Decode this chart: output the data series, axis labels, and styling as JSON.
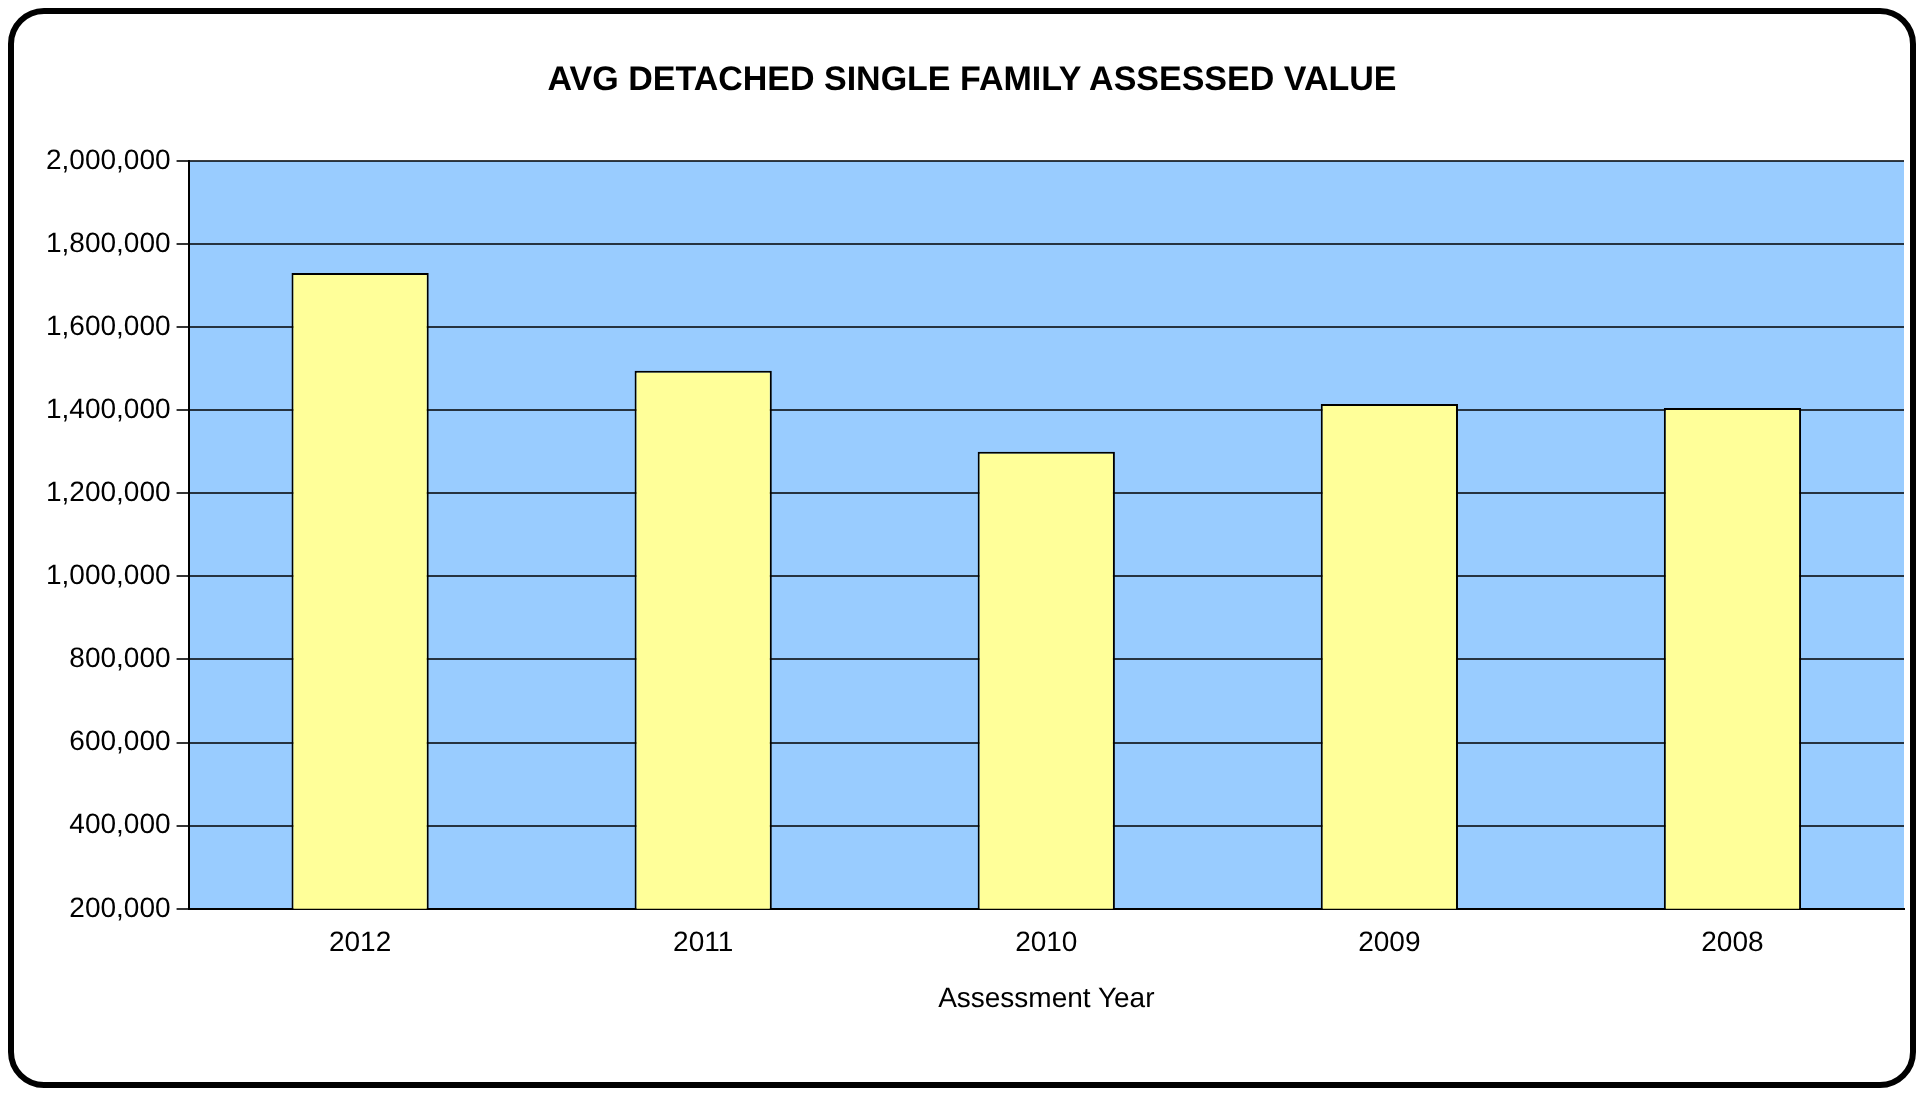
{
  "chart_data": {
    "type": "bar",
    "title": "AVG DETACHED SINGLE FAMILY ASSESSED VALUE",
    "xlabel": "Assessment Year",
    "categories": [
      "2012",
      "2011",
      "2010",
      "2009",
      "2008"
    ],
    "values": [
      1730000,
      1495000,
      1300000,
      1415000,
      1405000
    ],
    "color": "#ffff99",
    "ylim": [
      200000,
      2000000
    ],
    "yticks": [
      {
        "value": 200000,
        "label": "200,000"
      },
      {
        "value": 400000,
        "label": "400,000"
      },
      {
        "value": 600000,
        "label": "600,000"
      },
      {
        "value": 800000,
        "label": "800,000"
      },
      {
        "value": 1000000,
        "label": "1,000,000"
      },
      {
        "value": 1200000,
        "label": "1,200,000"
      },
      {
        "value": 1400000,
        "label": "1,400,000"
      },
      {
        "value": 1600000,
        "label": "1,600,000"
      },
      {
        "value": 1800000,
        "label": "1,800,000"
      },
      {
        "value": 2000000,
        "label": "2,000,000"
      }
    ],
    "grid": "y"
  }
}
